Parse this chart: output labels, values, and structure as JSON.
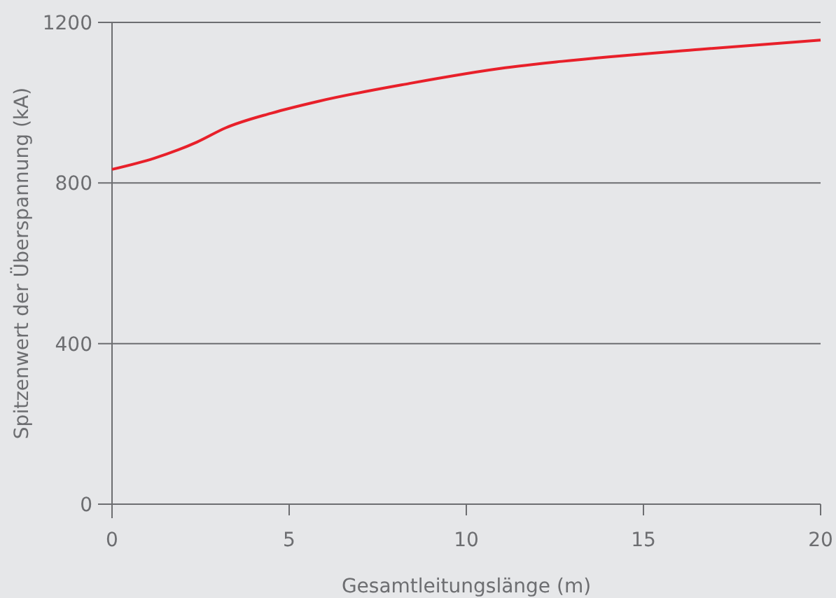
{
  "chart_data": {
    "type": "line",
    "xlabel": "Gesamtleitungslänge (m)",
    "ylabel": "Spitzenwert der Überspannung (kA)",
    "series": [
      {
        "color": "#e8202a",
        "x": [
          0,
          1.2,
          2.4,
          3.2,
          4.5,
          5.8,
          8.4,
          11.1,
          12.7,
          16.6,
          20
        ],
        "values": [
          834,
          862,
          902,
          937,
          974,
          1003,
          1048,
          1087,
          1103,
          1133,
          1156
        ]
      }
    ],
    "xlim": [
      0,
      20
    ],
    "xticks": [
      0,
      5,
      10,
      15,
      20
    ],
    "ylim": [
      0,
      1200
    ],
    "yticks": [
      0,
      400,
      800,
      1200
    ],
    "grid": "y"
  }
}
